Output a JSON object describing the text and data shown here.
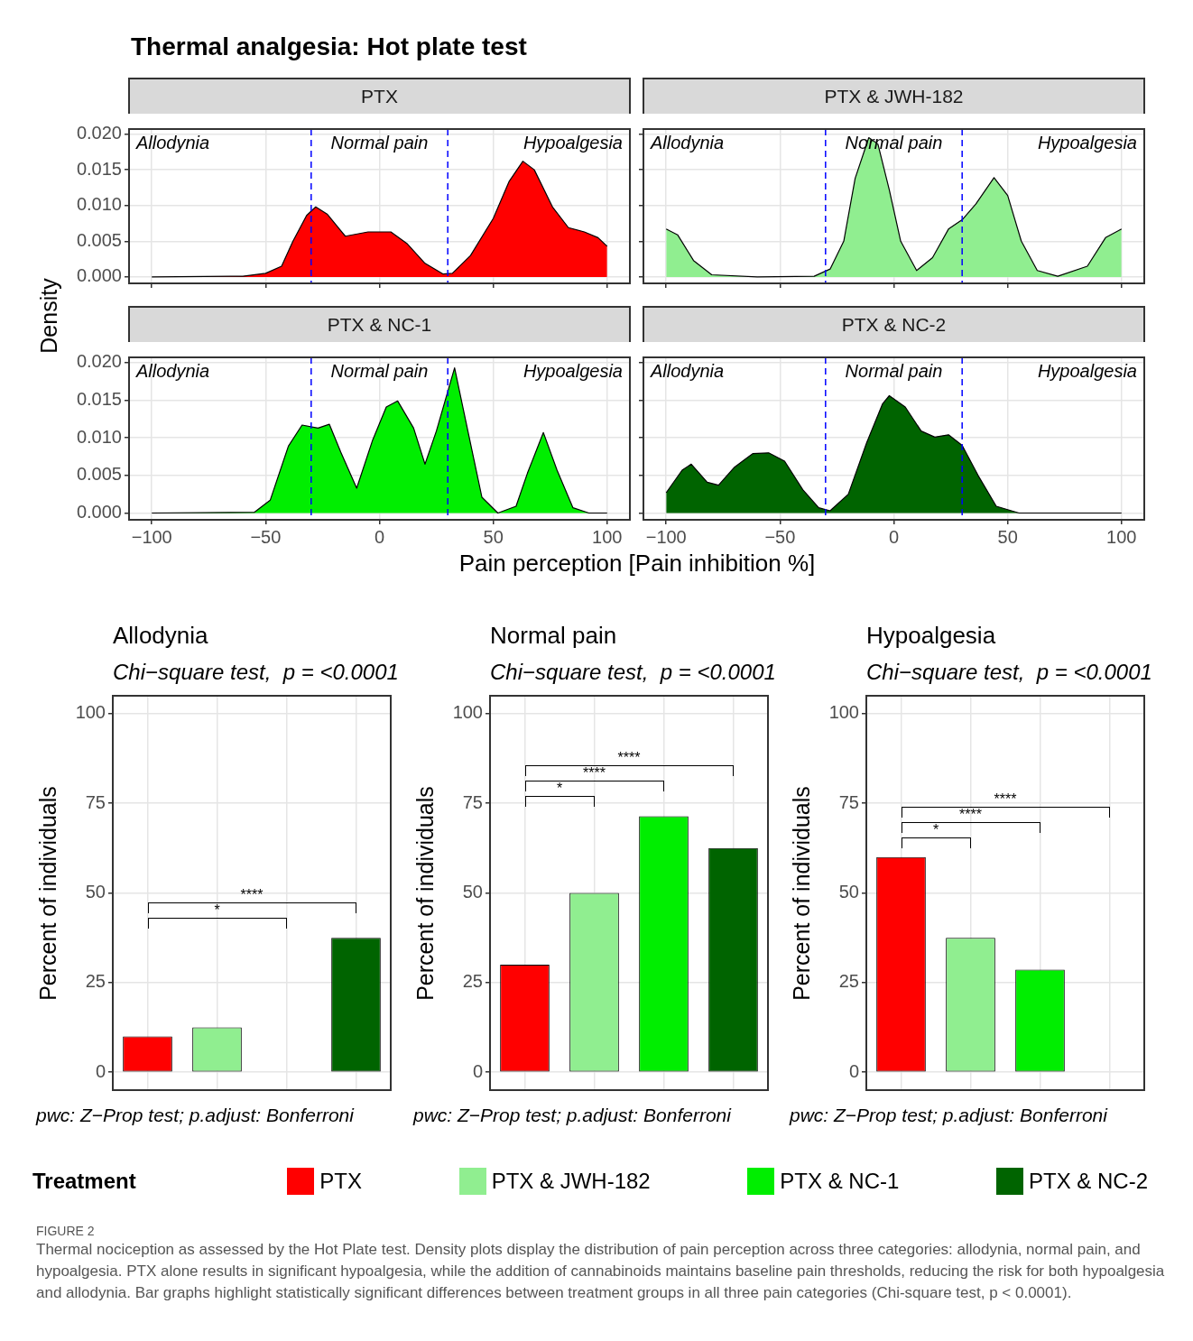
{
  "chart_data": [
    {
      "type": "area",
      "title": "Thermal analgesia: Hot plate test",
      "xlabel": "Pain perception [Pain inhibition %]",
      "ylabel": "Density",
      "series": [
        {
          "name": "PTX",
          "color": "#ff0000",
          "x": [
            -100,
            -60,
            -50,
            -43,
            -38,
            -32,
            -28,
            -23,
            -15,
            -5,
            5,
            12,
            20,
            28,
            32,
            40,
            50,
            57,
            63,
            68,
            76,
            83,
            90,
            96,
            100
          ],
          "values": [
            0,
            0.0001,
            0.0005,
            0.0015,
            0.005,
            0.0086,
            0.0098,
            0.0088,
            0.0057,
            0.0063,
            0.0063,
            0.0047,
            0.0019,
            0.0004,
            0.0005,
            0.003,
            0.0082,
            0.0134,
            0.0162,
            0.015,
            0.0098,
            0.0069,
            0.0063,
            0.0055,
            0.0043
          ]
        }
      ],
      "xlim": [
        -110,
        110
      ],
      "ylim": [
        -0.0009,
        0.0207
      ],
      "xticks": [
        {
          "value": -100,
          "label": null
        },
        {
          "value": -50,
          "label": null
        },
        {
          "value": 0,
          "label": null
        },
        {
          "value": 50,
          "label": null
        },
        {
          "value": 100,
          "label": null
        }
      ],
      "yticks": [
        {
          "value": 0,
          "label": "0.000"
        },
        {
          "value": 0.005,
          "label": "0.005"
        },
        {
          "value": 0.01,
          "label": "0.010"
        },
        {
          "value": 0.015,
          "label": "0.015"
        },
        {
          "value": 0.02,
          "label": "0.020"
        }
      ],
      "ref_lines": [
        {
          "axis": "x",
          "value": -30,
          "color": "#0000ff",
          "line_style": "dashed"
        },
        {
          "axis": "x",
          "value": 30,
          "color": "#0000ff",
          "line_style": "dashed"
        }
      ],
      "annotations": [
        "Allodynia",
        "Normal pain",
        "Hypoalgesia",
        "FIGURE 2",
        "Thermal nociception as assessed by the Hot Plate test. Density plots display the distribution of pain perception across three categories: allodynia, normal pain, and hypoalgesia. PTX alone results in significant hypoalgesia, while the addition of cannabinoids maintains baseline pain thresholds, reducing the risk for both hypoalgesia and allodynia. Bar graphs highlight statistically significant differences between treatment groups in all three pain categories (Chi-square test, p < 0.0001)."
      ],
      "grid": true,
      "tick_labels": "y"
    },
    {
      "type": "area",
      "series": [
        {
          "name": "PTX & JWH-182",
          "color": "#90ee90",
          "x": [
            -100,
            -95,
            -88,
            -80,
            -60,
            -35,
            -28,
            -22,
            -17,
            -11,
            -7,
            -2,
            3,
            10,
            17,
            24,
            30,
            36,
            44,
            50,
            56,
            63,
            72,
            85,
            93,
            100
          ],
          "values": [
            0.0067,
            0.0059,
            0.0023,
            0.0003,
            0,
            0.0001,
            0.0011,
            0.005,
            0.0138,
            0.0195,
            0.0186,
            0.0122,
            0.005,
            0.0009,
            0.0027,
            0.0067,
            0.008,
            0.0102,
            0.0139,
            0.0114,
            0.005,
            0.0009,
            0.0001,
            0.0015,
            0.0055,
            0.0067
          ]
        }
      ],
      "xlim": [
        -110,
        110
      ],
      "ylim": [
        -0.0009,
        0.0207
      ],
      "xticks": [
        {
          "value": -100,
          "label": null
        },
        {
          "value": -50,
          "label": null
        },
        {
          "value": 0,
          "label": null
        },
        {
          "value": 50,
          "label": null
        },
        {
          "value": 100,
          "label": null
        }
      ],
      "yticks": [
        {
          "value": 0,
          "label": null
        },
        {
          "value": 0.005,
          "label": null
        },
        {
          "value": 0.01,
          "label": null
        },
        {
          "value": 0.015,
          "label": null
        },
        {
          "value": 0.02,
          "label": null
        }
      ],
      "ref_lines": [
        {
          "axis": "x",
          "value": -30,
          "color": "#0000ff",
          "line_style": "dashed"
        },
        {
          "axis": "x",
          "value": 30,
          "color": "#0000ff",
          "line_style": "dashed"
        }
      ],
      "annotations": [
        "Allodynia",
        "Normal pain",
        "Hypoalgesia"
      ],
      "grid": true,
      "tick_labels": false
    },
    {
      "type": "area",
      "series": [
        {
          "name": "PTX & NC-1",
          "color": "#00ee00",
          "x": [
            -100,
            -55,
            -48,
            -40,
            -34,
            -27,
            -22,
            -17,
            -10,
            -3,
            3,
            8,
            15,
            20,
            25,
            33,
            38,
            45,
            52,
            60,
            65,
            72,
            78,
            85,
            92,
            100
          ],
          "values": [
            0,
            0.0001,
            0.0017,
            0.0089,
            0.0117,
            0.0113,
            0.0118,
            0.0081,
            0.0033,
            0.0097,
            0.0141,
            0.0149,
            0.0113,
            0.0065,
            0.0109,
            0.0193,
            0.0121,
            0.0021,
            0,
            0.0009,
            0.0053,
            0.0107,
            0.0057,
            0.0007,
            0,
            0
          ]
        }
      ],
      "xlim": [
        -110,
        110
      ],
      "ylim": [
        -0.0009,
        0.0207
      ],
      "xticks": [
        {
          "value": -100,
          "label": "−100"
        },
        {
          "value": -50,
          "label": "−50"
        },
        0,
        50,
        100
      ],
      "yticks": [
        {
          "value": 0,
          "label": "0.000"
        },
        {
          "value": 0.005,
          "label": "0.005"
        },
        {
          "value": 0.01,
          "label": "0.010"
        },
        {
          "value": 0.015,
          "label": "0.015"
        },
        {
          "value": 0.02,
          "label": "0.020"
        }
      ],
      "ref_lines": [
        {
          "axis": "x",
          "value": -30,
          "color": "#0000ff",
          "line_style": "dashed"
        },
        {
          "axis": "x",
          "value": 30,
          "color": "#0000ff",
          "line_style": "dashed"
        }
      ],
      "annotations": [
        "Allodynia",
        "Normal pain",
        "Hypoalgesia"
      ],
      "grid": true
    },
    {
      "type": "area",
      "series": [
        {
          "name": "PTX & NC-2",
          "color": "#006400",
          "x": [
            -100,
            -93,
            -89,
            -82,
            -77,
            -70,
            -62,
            -55,
            -48,
            -40,
            -33,
            -28,
            -20,
            -12,
            -5,
            -2,
            5,
            12,
            18,
            24,
            30,
            37,
            45,
            55,
            100
          ],
          "values": [
            0.0027,
            0.0057,
            0.0065,
            0.0041,
            0.0037,
            0.0061,
            0.0079,
            0.008,
            0.0069,
            0.0031,
            0.0007,
            0.0003,
            0.0025,
            0.0093,
            0.0145,
            0.0156,
            0.0141,
            0.0109,
            0.0101,
            0.0104,
            0.009,
            0.005,
            0.0009,
            0,
            0
          ]
        }
      ],
      "xlim": [
        -110,
        110
      ],
      "ylim": [
        -0.0009,
        0.0207
      ],
      "xticks": [
        {
          "value": -100,
          "label": "−100"
        },
        {
          "value": -50,
          "label": "−50"
        },
        0,
        50,
        100
      ],
      "yticks": [
        {
          "value": 0,
          "label": null
        },
        {
          "value": 0.005,
          "label": null
        },
        {
          "value": 0.01,
          "label": null
        },
        {
          "value": 0.015,
          "label": null
        },
        {
          "value": 0.02,
          "label": null
        }
      ],
      "ref_lines": [
        {
          "axis": "x",
          "value": -30,
          "color": "#0000ff",
          "line_style": "dashed"
        },
        {
          "axis": "x",
          "value": 30,
          "color": "#0000ff",
          "line_style": "dashed"
        }
      ],
      "annotations": [
        "Allodynia",
        "Normal pain",
        "Hypoalgesia"
      ],
      "grid": true,
      "tick_labels": "x"
    },
    {
      "type": "bar",
      "title": "Allodynia",
      "subtitle": "Chi−square test,  p = <0.0001",
      "ylabel": "Percent of individuals",
      "categories": [
        null,
        null,
        null,
        null
      ],
      "values": [
        10,
        12.5,
        0,
        37.5
      ],
      "colors": [
        "#ff0000",
        "#90ee90",
        "#00ee00",
        "#006400"
      ],
      "ylim": [
        -5,
        105
      ],
      "yticks": [
        0,
        25,
        50,
        75,
        100
      ],
      "grid": true,
      "annotations": [
        "*",
        "****",
        "pwc: Z−Prop test; p.adjust: Bonferroni"
      ]
    },
    {
      "type": "bar",
      "title": "Normal pain",
      "subtitle": "Chi−square test,  p = <0.0001",
      "ylabel": "Percent of individuals",
      "legend_title": "Treatment",
      "legend": "bottom",
      "categories": [
        null,
        null,
        null,
        null
      ],
      "series": [
        {
          "name": "PTX",
          "color": "#ff0000",
          "values": [
            30,
            null,
            null,
            null
          ]
        },
        {
          "name": "PTX & JWH-182",
          "color": "#90ee90",
          "values": [
            null,
            50,
            null,
            null
          ]
        },
        {
          "name": "PTX & NC-1",
          "color": "#00ee00",
          "values": [
            null,
            null,
            71.4,
            null
          ]
        },
        {
          "name": "PTX & NC-2",
          "color": "#006400",
          "values": [
            null,
            null,
            null,
            62.5
          ]
        }
      ],
      "ylim": [
        -5,
        105
      ],
      "yticks": [
        0,
        25,
        50,
        75,
        100
      ],
      "grid": true,
      "annotations": [
        "*",
        "****",
        "****",
        "pwc: Z−Prop test; p.adjust: Bonferroni"
      ]
    },
    {
      "type": "bar",
      "title": "Hypoalgesia",
      "subtitle": "Chi−square test,  p = <0.0001",
      "ylabel": "Percent of individuals",
      "categories": [
        null,
        null,
        null,
        null
      ],
      "values": [
        60,
        37.5,
        28.6,
        0
      ],
      "colors": [
        "#ff0000",
        "#90ee90",
        "#00ee00",
        "#006400"
      ],
      "ylim": [
        -5,
        105
      ],
      "yticks": [
        0,
        25,
        50,
        75,
        100
      ],
      "grid": true,
      "annotations": [
        "*",
        "****",
        "****",
        "pwc: Z−Prop test; p.adjust: Bonferroni"
      ]
    }
  ]
}
